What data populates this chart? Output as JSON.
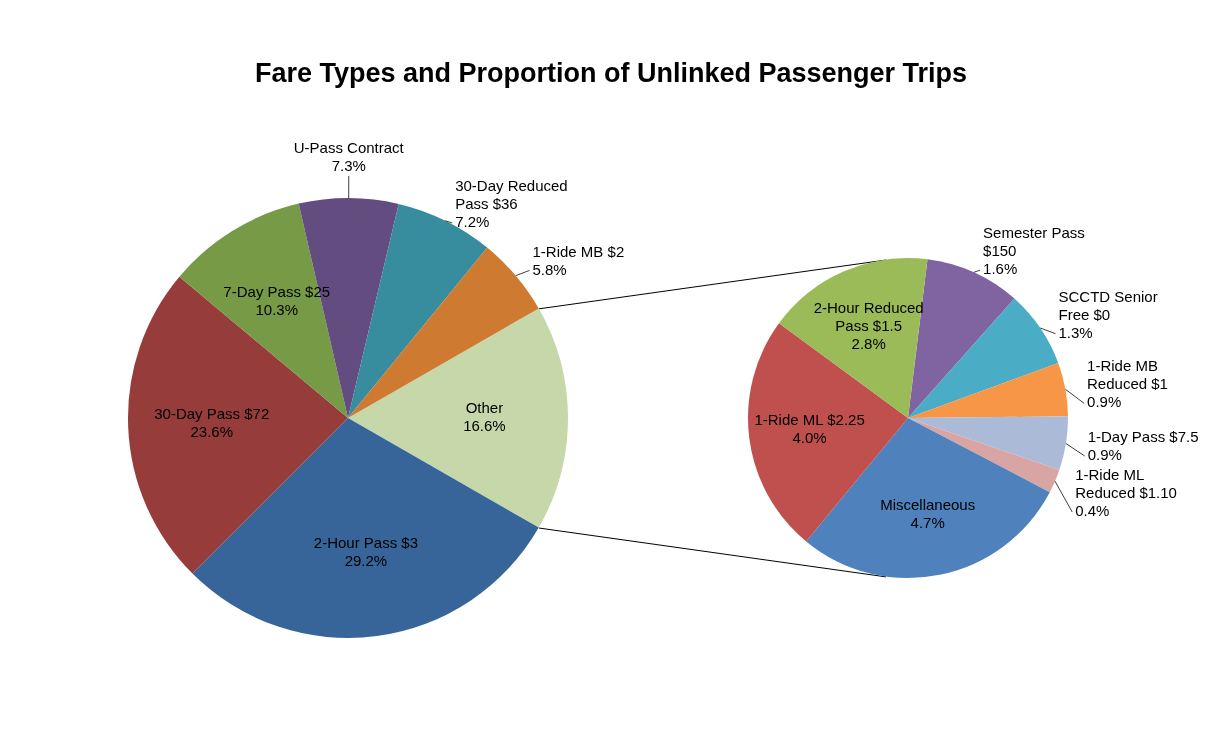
{
  "chart_data": [
    {
      "type": "pie",
      "title": "Fare Types and Proportion of Unlinked Passenger Trips",
      "categories": [
        "Other",
        "2-Hour Pass $3",
        "30-Day Pass $72",
        "7-Day Pass $25",
        "U-Pass Contract",
        "30-Day Reduced Pass $36",
        "1-Ride MB $2"
      ],
      "values": [
        16.6,
        29.2,
        23.6,
        10.3,
        7.3,
        7.2,
        5.8
      ],
      "value_labels": [
        "16.6%",
        "29.2%",
        "23.6%",
        "10.3%",
        "7.3%",
        "7.2%",
        "5.8%"
      ],
      "colors": [
        "#c6d7a9",
        "#376599",
        "#963c3b",
        "#779a46",
        "#624c80",
        "#378c9e",
        "#ce7a31"
      ]
    },
    {
      "type": "pie",
      "categories": [
        "Semester Pass $150",
        "SCCTD Senior Free $0",
        "1-Ride MB Reduced $1",
        "1-Day Pass $7.5",
        "1-Ride ML Reduced $1.10",
        "Miscellaneous",
        "1-Ride ML $2.25",
        "2-Hour Reduced Pass $1.5"
      ],
      "values": [
        1.6,
        1.3,
        0.9,
        0.9,
        0.4,
        4.7,
        4.0,
        2.8
      ],
      "value_labels": [
        "1.6%",
        "1.3%",
        "0.9%",
        "0.9%",
        "0.4%",
        "4.7%",
        "4.0%",
        "2.8%"
      ],
      "colors": [
        "#8064a2",
        "#4bacc6",
        "#f79646",
        "#aabad7",
        "#d9a5a4",
        "#4f81bd",
        "#c0504d",
        "#9bbb59"
      ]
    }
  ]
}
